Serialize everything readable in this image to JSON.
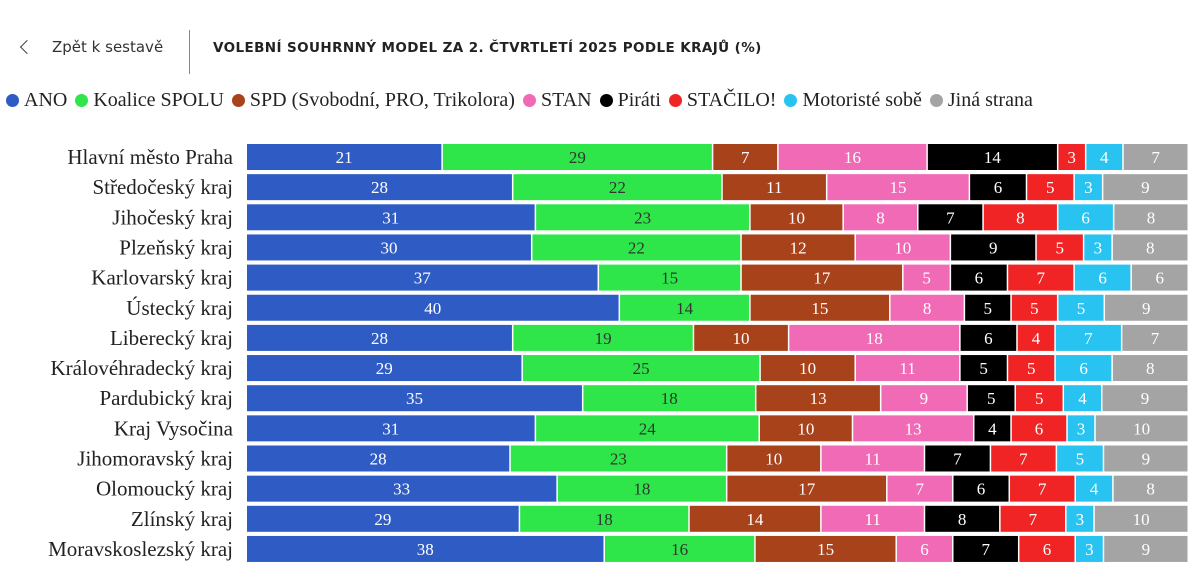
{
  "header": {
    "back_label": "Zpět k sestavě",
    "title": "VOLEBNÍ SOUHRNNÝ MODEL ZA 2. ČTVRTLETÍ 2025 PODLE KRAJŮ (%)"
  },
  "icons": {
    "back": "chevron-left-icon"
  },
  "chart_data": {
    "type": "bar",
    "orientation": "horizontal",
    "stacked": true,
    "title": "VOLEBNÍ SOUHRNNÝ MODEL ZA 2. ČTVRTLETÍ 2025 PODLE KRAJŮ (%)",
    "legend_position": "top",
    "grid": false,
    "categories": [
      "Hlavní město Praha",
      "Středočeský kraj",
      "Jihočeský kraj",
      "Plzeňský kraj",
      "Karlovarský kraj",
      "Ústecký kraj",
      "Liberecký kraj",
      "Královéhradecký kraj",
      "Pardubický kraj",
      "Kraj Vysočina",
      "Jihomoravský kraj",
      "Olomoucký kraj",
      "Zlínský kraj",
      "Moravskoslezský kraj"
    ],
    "series": [
      {
        "name": "ANO",
        "color": "#2f5bc4",
        "values": [
          21,
          28,
          31,
          30,
          37,
          40,
          28,
          29,
          35,
          31,
          28,
          33,
          29,
          38
        ]
      },
      {
        "name": "Koalice SPOLU",
        "color": "#2ee64a",
        "values": [
          29,
          22,
          23,
          22,
          15,
          14,
          19,
          25,
          18,
          24,
          23,
          18,
          18,
          16
        ]
      },
      {
        "name": "SPD (Svobodní, PRO, Trikolora)",
        "color": "#a8421b",
        "values": [
          7,
          11,
          10,
          12,
          17,
          15,
          10,
          10,
          13,
          10,
          10,
          17,
          14,
          15
        ]
      },
      {
        "name": "STAN",
        "color": "#f06ab6",
        "values": [
          16,
          15,
          8,
          10,
          5,
          8,
          18,
          11,
          9,
          13,
          11,
          7,
          11,
          6
        ]
      },
      {
        "name": "Piráti",
        "color": "#000000",
        "values": [
          14,
          6,
          7,
          9,
          6,
          5,
          6,
          5,
          5,
          4,
          7,
          6,
          8,
          7
        ]
      },
      {
        "name": "STAČILO!",
        "color": "#f02424",
        "values": [
          3,
          5,
          8,
          5,
          7,
          5,
          4,
          5,
          5,
          6,
          7,
          7,
          7,
          6
        ]
      },
      {
        "name": "Motoristé sobě",
        "color": "#28c3f0",
        "values": [
          4,
          3,
          6,
          3,
          6,
          5,
          7,
          6,
          4,
          3,
          5,
          4,
          3,
          3
        ]
      },
      {
        "name": "Jiná strana",
        "color": "#a4a4a4",
        "values": [
          7,
          9,
          8,
          8,
          6,
          9,
          7,
          8,
          9,
          10,
          9,
          8,
          10,
          9
        ]
      }
    ]
  }
}
